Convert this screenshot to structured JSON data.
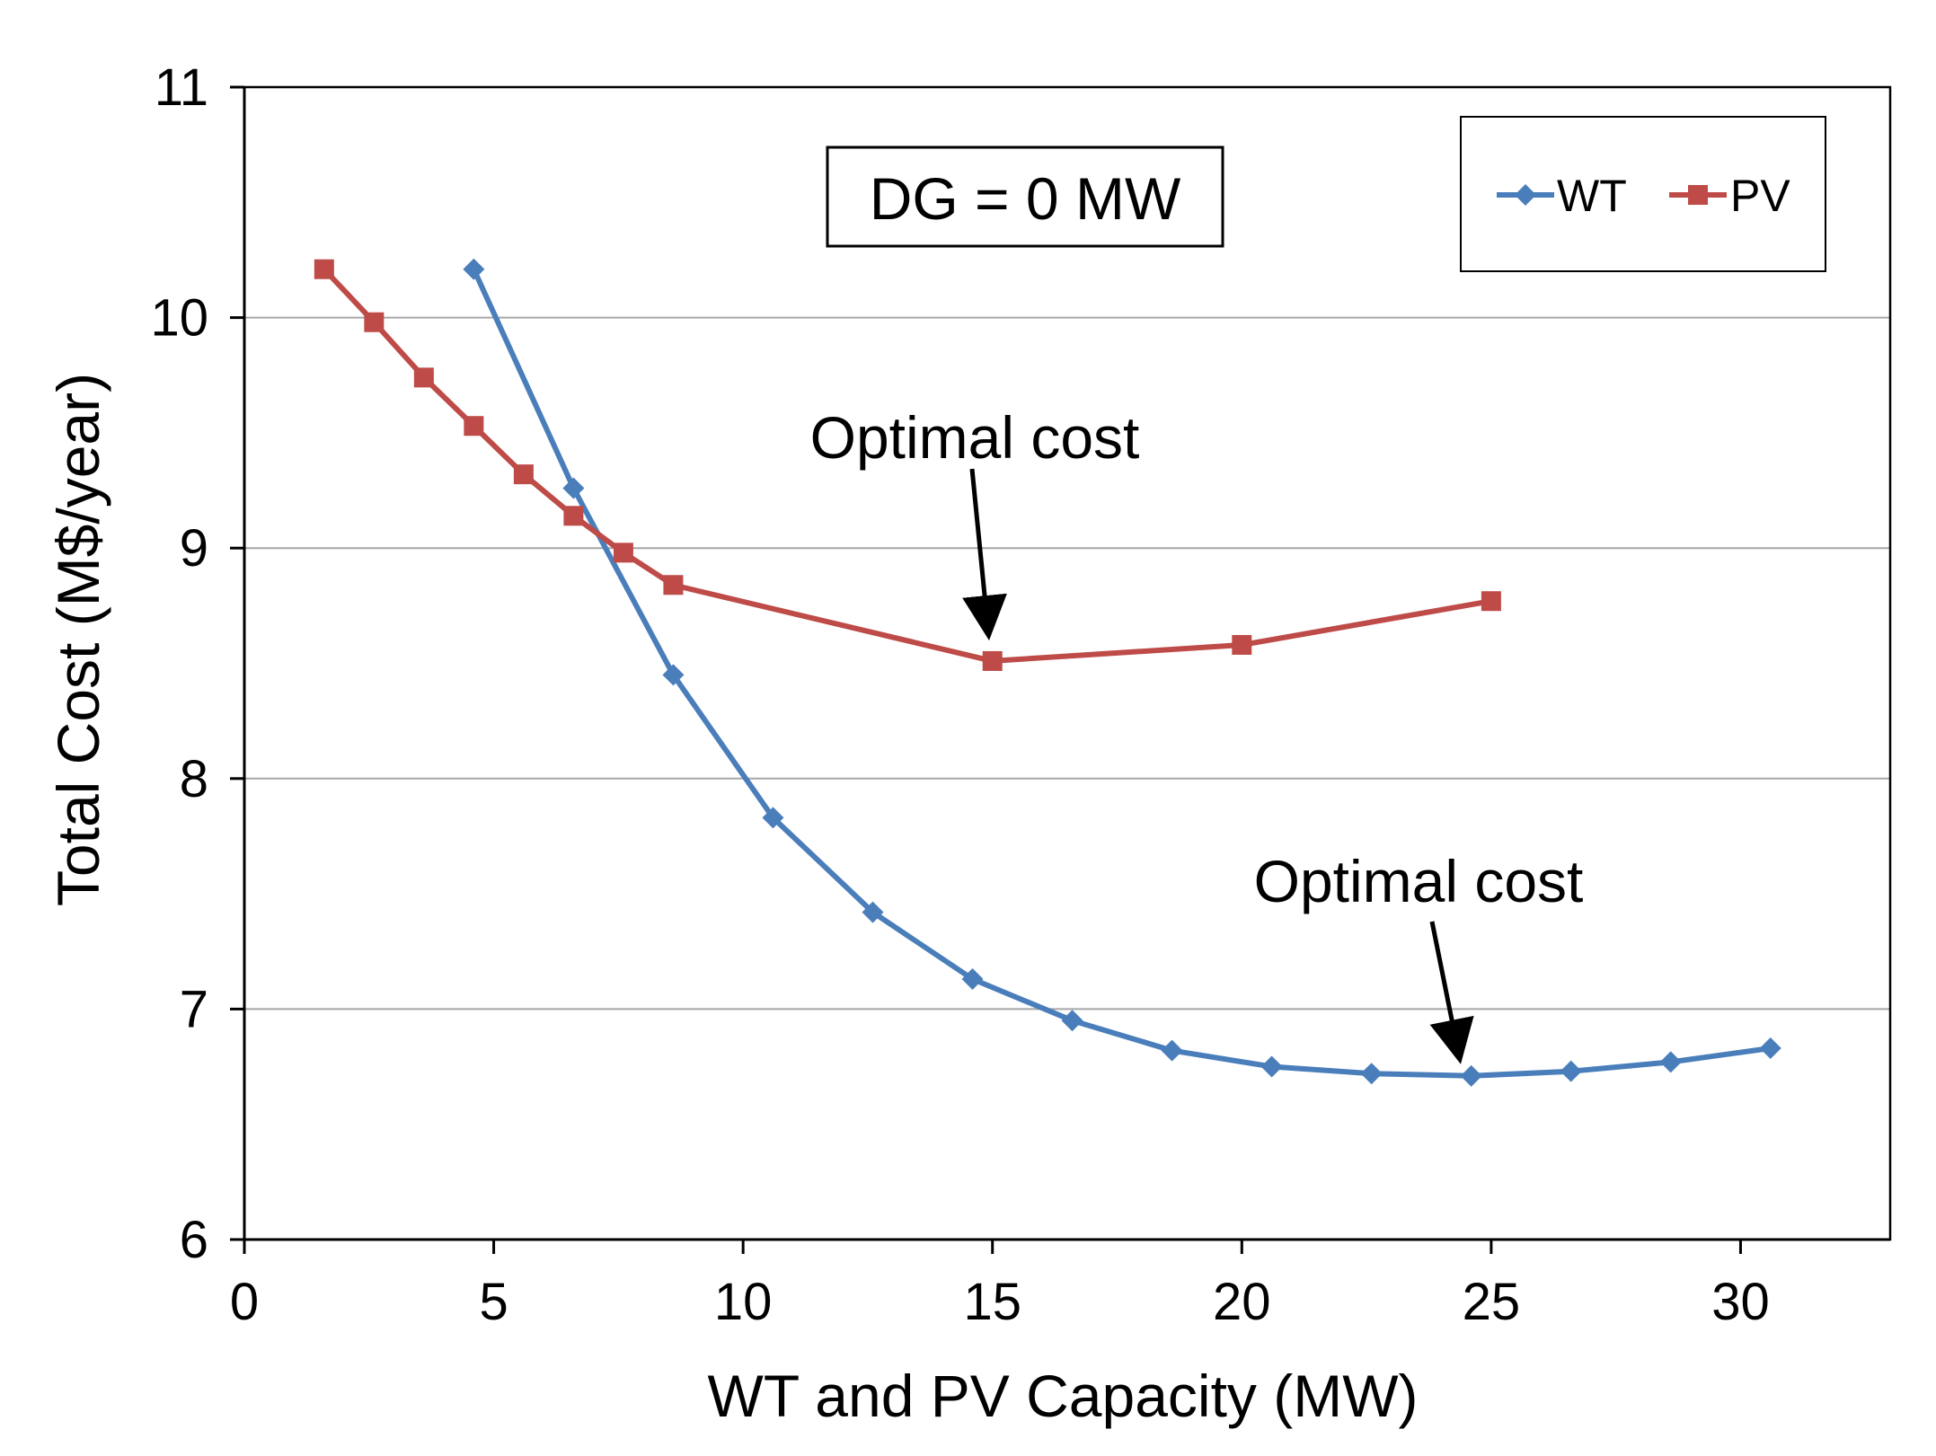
{
  "chart_data": {
    "type": "line",
    "title": "",
    "xlabel": "WT and PV Capacity (MW)",
    "ylabel": "Total Cost (M$/year)",
    "xlim": [
      0,
      33
    ],
    "ylim": [
      6,
      11
    ],
    "x_ticks": [
      0,
      5,
      10,
      15,
      20,
      25,
      30
    ],
    "y_ticks": [
      6,
      7,
      8,
      9,
      10,
      11
    ],
    "grid": "horizontal",
    "legend_position": "top-right",
    "series": [
      {
        "name": "WT",
        "color": "#4a7ebb",
        "marker": "diamond",
        "x": [
          4.6,
          6.6,
          8.6,
          10.6,
          12.6,
          14.6,
          16.6,
          18.6,
          20.6,
          22.6,
          24.6,
          26.6,
          28.6,
          30.6
        ],
        "y": [
          10.21,
          9.26,
          8.45,
          7.83,
          7.42,
          7.13,
          6.95,
          6.82,
          6.75,
          6.72,
          6.71,
          6.73,
          6.77,
          6.83
        ]
      },
      {
        "name": "PV",
        "color": "#be4b48",
        "marker": "square",
        "x": [
          1.6,
          2.6,
          3.6,
          4.6,
          5.6,
          6.6,
          7.6,
          8.6,
          15,
          20,
          25
        ],
        "y": [
          10.21,
          9.98,
          9.74,
          9.53,
          9.32,
          9.14,
          8.98,
          8.84,
          8.51,
          8.58,
          8.77
        ]
      }
    ],
    "annotations": [
      {
        "text": "Optimal cost",
        "points_to": {
          "series": "PV",
          "x": 15,
          "y": 8.51
        }
      },
      {
        "text": "Optimal cost",
        "points_to": {
          "series": "WT",
          "x": 24.6,
          "y": 6.71
        }
      }
    ],
    "textbox": "DG = 0 MW"
  }
}
